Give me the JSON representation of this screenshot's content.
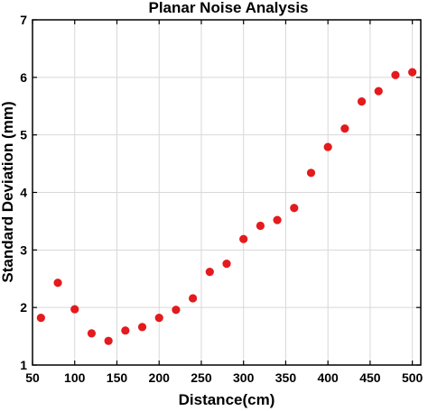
{
  "chart_data": {
    "type": "scatter",
    "title": "Planar Noise Analysis",
    "xlabel": "Distance(cm)",
    "ylabel": "Standard Deviation (mm)",
    "xlim": [
      50,
      510
    ],
    "ylim": [
      1,
      7
    ],
    "xticks": [
      50,
      100,
      150,
      200,
      250,
      300,
      350,
      400,
      450,
      500
    ],
    "yticks": [
      1,
      2,
      3,
      4,
      5,
      6,
      7
    ],
    "grid": true,
    "series": [
      {
        "color": "#e41a1c",
        "x": [
          60,
          80,
          100,
          120,
          140,
          160,
          180,
          200,
          220,
          240,
          260,
          280,
          300,
          320,
          340,
          360,
          380,
          400,
          420,
          440,
          460,
          480,
          500
        ],
        "y": [
          1.82,
          2.43,
          1.97,
          1.55,
          1.42,
          1.6,
          1.66,
          1.82,
          1.96,
          2.16,
          2.62,
          2.76,
          3.19,
          3.42,
          3.52,
          3.73,
          4.34,
          4.79,
          5.11,
          5.58,
          5.76,
          6.04,
          6.09
        ]
      }
    ]
  }
}
